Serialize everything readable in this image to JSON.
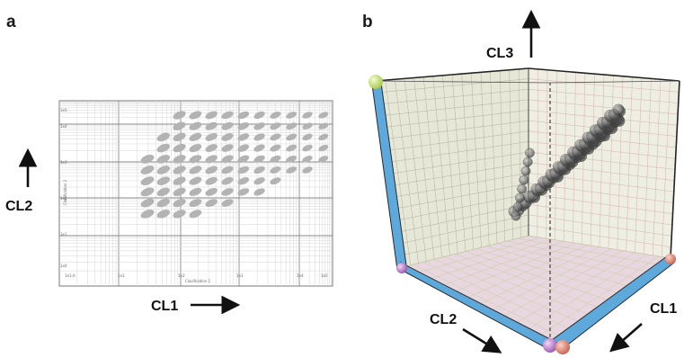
{
  "panels": {
    "a": {
      "label": "a",
      "x_axis_label": "CL1",
      "y_axis_label": "CL2",
      "x_ticks": [
        "1e1-0",
        "1e1",
        "1e2",
        "1e3",
        "1e4",
        "1e5"
      ],
      "y_ticks": [
        "1e5",
        "1e4",
        "1e3",
        "1e2",
        "1e1",
        "1e0"
      ],
      "inner_xlabel": "Clasification 1",
      "inner_ylabel": "Clasification 2"
    },
    "b": {
      "label": "b",
      "x_axis_label": "CL1",
      "y_axis_label": "CL2",
      "z_axis_label": "CL3"
    }
  },
  "colors": {
    "ellipse_fill": "#b3b3b3",
    "grid_minor": "#d6d6d6",
    "grid_major": "#888888",
    "cube_edge_blue": "#5ba8da",
    "back_wall": "#e6e6d6",
    "floor": "#e6d2dc",
    "corner_green": "#c9e47a",
    "corner_purple": "#bb80c8",
    "corner_salmon": "#e48f7e",
    "sphere_gray": "#6a6a6a"
  }
}
